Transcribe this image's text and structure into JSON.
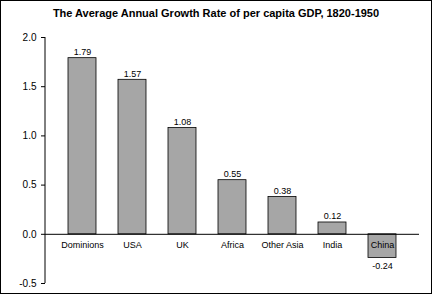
{
  "chart_data": {
    "type": "bar",
    "title": "The Average Annual Growth Rate of per capita GDP, 1820-1950",
    "categories": [
      "Dominions",
      "USA",
      "UK",
      "Africa",
      "Other Asia",
      "India",
      "China"
    ],
    "values": [
      1.79,
      1.57,
      1.08,
      0.55,
      0.38,
      0.12,
      -0.24
    ],
    "color": "#a6a6a6",
    "ylim": [
      -0.5,
      2.0
    ],
    "yticks": [
      -0.5,
      {
        "value": 0,
        "label": "0.0"
      },
      0.5,
      {
        "value": 1,
        "label": "1.0"
      },
      1.5,
      {
        "value": 2,
        "label": "2.0"
      }
    ],
    "grid": false,
    "data_labels": true
  }
}
